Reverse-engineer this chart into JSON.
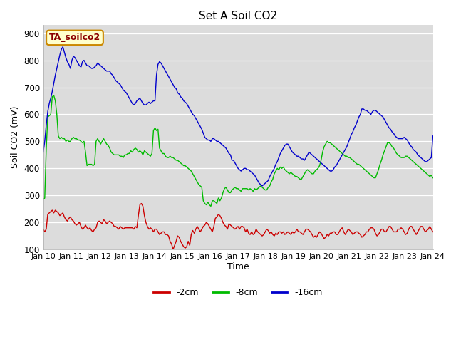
{
  "title": "Set A Soil CO2",
  "xlabel": "Time",
  "ylabel": "Soil CO2 (mV)",
  "ylim": [
    100,
    930
  ],
  "yticks": [
    100,
    200,
    300,
    400,
    500,
    600,
    700,
    800,
    900
  ],
  "label_tag": "TA_soilco2",
  "bg_color": "#dcdcdc",
  "legend_labels": [
    "-2cm",
    "-8cm",
    "-16cm"
  ],
  "legend_colors": [
    "#cc0000",
    "#00bb00",
    "#0000cc"
  ],
  "x_tick_labels": [
    "Jan 10",
    "Jan 11",
    "Jan 12",
    "Jan 13",
    "Jan 14",
    "Jan 15",
    "Jan 16",
    "Jan 17",
    "Jan 18",
    "Jan 19",
    "Jan 20",
    "Jan 21",
    "Jan 22",
    "Jan 23",
    "Jan 24"
  ],
  "series_2cm": [
    175,
    165,
    175,
    230,
    235,
    240,
    245,
    235,
    245,
    240,
    235,
    225,
    230,
    235,
    220,
    210,
    205,
    215,
    220,
    210,
    205,
    195,
    190,
    195,
    200,
    185,
    175,
    180,
    190,
    180,
    175,
    180,
    170,
    165,
    175,
    180,
    200,
    205,
    200,
    195,
    210,
    205,
    195,
    200,
    205,
    200,
    195,
    185,
    185,
    180,
    175,
    185,
    180,
    175,
    180,
    180,
    180,
    180,
    180,
    180,
    175,
    185,
    180,
    225,
    265,
    270,
    260,
    225,
    200,
    185,
    175,
    180,
    175,
    165,
    175,
    175,
    165,
    155,
    160,
    165,
    165,
    155,
    155,
    150,
    130,
    120,
    100,
    115,
    130,
    150,
    145,
    130,
    120,
    110,
    105,
    110,
    130,
    115,
    155,
    170,
    160,
    175,
    185,
    175,
    165,
    175,
    185,
    190,
    200,
    195,
    185,
    175,
    165,
    185,
    215,
    220,
    230,
    225,
    215,
    200,
    190,
    185,
    175,
    195,
    190,
    185,
    180,
    175,
    180,
    185,
    175,
    185,
    185,
    180,
    165,
    175,
    160,
    155,
    165,
    155,
    160,
    175,
    165,
    160,
    155,
    150,
    155,
    165,
    175,
    170,
    160,
    165,
    155,
    150,
    160,
    155,
    165,
    165,
    160,
    165,
    155,
    160,
    165,
    160,
    155,
    165,
    160,
    165,
    175,
    165,
    165,
    160,
    155,
    165,
    175,
    175,
    170,
    165,
    155,
    145,
    150,
    145,
    155,
    165,
    160,
    150,
    140,
    145,
    155,
    150,
    160,
    160,
    165,
    165,
    155,
    155,
    165,
    175,
    180,
    165,
    155,
    165,
    175,
    170,
    165,
    155,
    160,
    165,
    165,
    160,
    155,
    145,
    150,
    155,
    165,
    165,
    175,
    180,
    180,
    175,
    160,
    150,
    155,
    165,
    175,
    175,
    165,
    165,
    175,
    185,
    185,
    175,
    165,
    165,
    165,
    175,
    175,
    180,
    175,
    165,
    155,
    160,
    175,
    185,
    185,
    175,
    165,
    155,
    165,
    175,
    185,
    185,
    175,
    165,
    170,
    175,
    185,
    175,
    165
  ],
  "series_8cm": [
    285,
    290,
    470,
    590,
    595,
    600,
    665,
    670,
    650,
    600,
    520,
    510,
    515,
    510,
    510,
    500,
    505,
    500,
    500,
    510,
    515,
    510,
    510,
    505,
    505,
    500,
    495,
    500,
    460,
    410,
    415,
    415,
    415,
    410,
    415,
    500,
    510,
    500,
    490,
    500,
    510,
    500,
    490,
    485,
    475,
    460,
    455,
    450,
    450,
    450,
    450,
    445,
    445,
    440,
    450,
    450,
    455,
    455,
    465,
    460,
    470,
    475,
    470,
    460,
    465,
    460,
    450,
    465,
    460,
    455,
    450,
    445,
    455,
    540,
    550,
    540,
    545,
    475,
    465,
    455,
    455,
    445,
    440,
    440,
    445,
    440,
    440,
    435,
    430,
    430,
    425,
    420,
    415,
    410,
    410,
    405,
    400,
    395,
    390,
    380,
    370,
    360,
    350,
    340,
    335,
    330,
    280,
    270,
    265,
    275,
    265,
    260,
    280,
    280,
    275,
    270,
    290,
    280,
    290,
    310,
    325,
    330,
    320,
    310,
    310,
    320,
    325,
    330,
    325,
    325,
    320,
    315,
    325,
    325,
    325,
    325,
    320,
    325,
    320,
    315,
    325,
    320,
    325,
    330,
    335,
    330,
    325,
    320,
    320,
    330,
    335,
    350,
    360,
    380,
    390,
    400,
    395,
    405,
    400,
    405,
    395,
    390,
    385,
    380,
    385,
    380,
    375,
    370,
    370,
    365,
    360,
    360,
    370,
    380,
    390,
    395,
    390,
    385,
    380,
    380,
    390,
    395,
    400,
    410,
    430,
    460,
    480,
    490,
    500,
    495,
    495,
    490,
    485,
    480,
    475,
    470,
    465,
    460,
    455,
    450,
    445,
    445,
    440,
    440,
    435,
    430,
    425,
    420,
    415,
    415,
    410,
    405,
    400,
    395,
    390,
    385,
    380,
    375,
    370,
    365,
    365,
    380,
    395,
    415,
    430,
    450,
    465,
    480,
    495,
    495,
    490,
    480,
    475,
    465,
    455,
    450,
    445,
    440,
    440,
    440,
    445,
    445,
    440,
    435,
    430,
    425,
    420,
    415,
    410,
    405,
    400,
    395,
    390,
    385,
    380,
    375,
    370,
    375,
    365
  ],
  "series_16cm": [
    460,
    500,
    560,
    610,
    640,
    660,
    685,
    715,
    745,
    770,
    795,
    820,
    840,
    850,
    830,
    810,
    795,
    785,
    770,
    800,
    815,
    810,
    800,
    790,
    780,
    775,
    795,
    800,
    790,
    780,
    780,
    775,
    770,
    770,
    775,
    780,
    790,
    785,
    780,
    775,
    770,
    765,
    760,
    760,
    760,
    750,
    745,
    735,
    725,
    720,
    715,
    710,
    700,
    690,
    685,
    680,
    670,
    660,
    650,
    640,
    635,
    640,
    650,
    655,
    660,
    650,
    640,
    635,
    635,
    640,
    645,
    640,
    645,
    650,
    650,
    745,
    785,
    795,
    790,
    780,
    770,
    760,
    750,
    740,
    730,
    720,
    710,
    700,
    695,
    680,
    675,
    665,
    660,
    650,
    645,
    640,
    630,
    620,
    610,
    600,
    595,
    585,
    575,
    565,
    555,
    545,
    530,
    515,
    510,
    505,
    505,
    500,
    510,
    510,
    505,
    500,
    500,
    495,
    490,
    485,
    480,
    475,
    465,
    455,
    450,
    430,
    430,
    420,
    410,
    400,
    395,
    390,
    395,
    400,
    400,
    395,
    395,
    390,
    385,
    380,
    375,
    365,
    355,
    345,
    340,
    335,
    340,
    345,
    350,
    355,
    370,
    380,
    390,
    400,
    415,
    425,
    440,
    455,
    465,
    475,
    485,
    490,
    490,
    480,
    470,
    460,
    455,
    450,
    445,
    445,
    440,
    435,
    435,
    430,
    440,
    450,
    460,
    455,
    450,
    445,
    440,
    435,
    430,
    425,
    420,
    415,
    410,
    405,
    400,
    395,
    390,
    390,
    395,
    405,
    410,
    420,
    430,
    440,
    450,
    460,
    470,
    480,
    495,
    510,
    525,
    535,
    550,
    560,
    575,
    590,
    600,
    620,
    620,
    615,
    615,
    610,
    605,
    600,
    610,
    615,
    615,
    610,
    605,
    600,
    595,
    590,
    580,
    570,
    560,
    550,
    545,
    535,
    530,
    520,
    515,
    510,
    510,
    510,
    510,
    515,
    510,
    505,
    495,
    485,
    480,
    470,
    465,
    460,
    450,
    445,
    440,
    435,
    430,
    425,
    425,
    430,
    435,
    440,
    520
  ]
}
